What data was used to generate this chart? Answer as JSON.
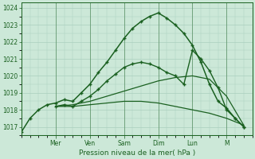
{
  "xlabel": "Pression niveau de la mer( hPa )",
  "ylim": [
    1016.5,
    1024.3
  ],
  "xlim": [
    0,
    13.5
  ],
  "yticks": [
    1017,
    1018,
    1019,
    1020,
    1021,
    1022,
    1023,
    1024
  ],
  "xtick_positions": [
    2.0,
    4.0,
    6.0,
    8.0,
    10.0,
    12.0
  ],
  "xtick_labels": [
    "Mer",
    "Ven",
    "Sam",
    "Dim",
    "Lun",
    "M"
  ],
  "bg_color": "#cce8d8",
  "grid_color": "#aacfbe",
  "line_color": "#1a6020",
  "series": [
    {
      "x": [
        0.0,
        0.5,
        1.0,
        1.5,
        2.0,
        2.5,
        3.0,
        3.5,
        4.0,
        4.5,
        5.0,
        5.5,
        6.0,
        6.5,
        7.0,
        7.5,
        8.0,
        8.5,
        9.0,
        9.5,
        10.0,
        10.5,
        11.0,
        11.5,
        12.0,
        12.5,
        13.0
      ],
      "y": [
        1016.7,
        1017.5,
        1018.0,
        1018.3,
        1018.4,
        1018.6,
        1018.5,
        1019.0,
        1019.5,
        1020.2,
        1020.8,
        1021.5,
        1022.2,
        1022.8,
        1023.2,
        1023.5,
        1023.7,
        1023.4,
        1023.0,
        1022.5,
        1021.8,
        1020.8,
        1019.5,
        1018.5,
        1018.1,
        1017.5,
        1017.0
      ],
      "marker": "+",
      "markersize": 3.5,
      "lw": 1.1
    },
    {
      "x": [
        2.0,
        2.5,
        3.0,
        3.5,
        4.0,
        4.5,
        5.0,
        5.5,
        6.0,
        6.5,
        7.0,
        7.5,
        8.0,
        8.5,
        9.0,
        9.5,
        10.0,
        10.5,
        11.0,
        11.5,
        12.0,
        12.5,
        13.0
      ],
      "y": [
        1018.2,
        1018.3,
        1018.2,
        1018.5,
        1018.8,
        1019.2,
        1019.7,
        1020.1,
        1020.5,
        1020.7,
        1020.8,
        1020.7,
        1020.5,
        1020.2,
        1020.0,
        1019.5,
        1021.5,
        1021.0,
        1020.3,
        1019.3,
        1018.0,
        1017.5,
        1017.0
      ],
      "marker": "+",
      "markersize": 3.5,
      "lw": 1.0
    },
    {
      "x": [
        2.0,
        3.0,
        4.0,
        5.0,
        6.0,
        7.0,
        8.0,
        9.0,
        10.0,
        11.0,
        12.0,
        13.0
      ],
      "y": [
        1018.2,
        1018.3,
        1018.5,
        1018.8,
        1019.1,
        1019.4,
        1019.7,
        1019.9,
        1020.0,
        1019.8,
        1018.8,
        1017.1
      ],
      "marker": null,
      "markersize": 0,
      "lw": 0.9
    },
    {
      "x": [
        2.0,
        3.0,
        4.0,
        5.0,
        6.0,
        7.0,
        8.0,
        9.0,
        10.0,
        11.0,
        12.0,
        13.0
      ],
      "y": [
        1018.2,
        1018.2,
        1018.3,
        1018.4,
        1018.5,
        1018.5,
        1018.4,
        1018.2,
        1018.0,
        1017.8,
        1017.5,
        1017.1
      ],
      "marker": null,
      "markersize": 0,
      "lw": 0.9
    }
  ]
}
